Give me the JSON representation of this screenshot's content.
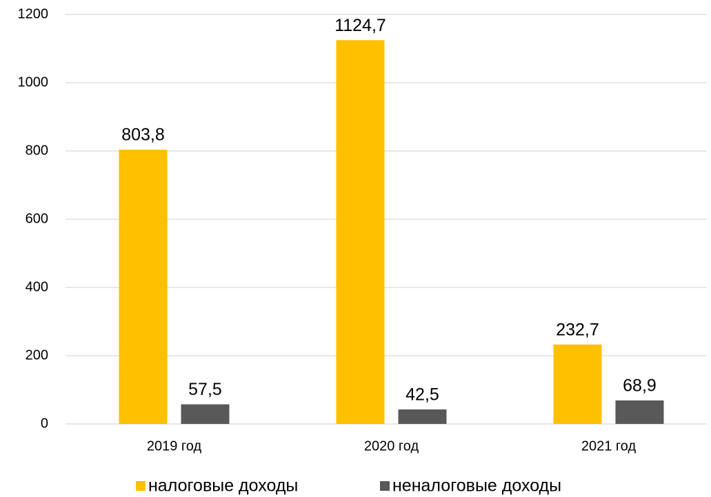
{
  "chart_data": {
    "type": "bar",
    "categories": [
      "2019 год",
      "2020 год",
      "2021 год"
    ],
    "series": [
      {
        "name": "налоговые доходы",
        "color": "#FFC000",
        "values": [
          803.8,
          1124.7,
          232.7
        ],
        "value_labels": [
          "803,8",
          "1124,7",
          "232,7"
        ]
      },
      {
        "name": "неналоговые доходы",
        "color": "#595959",
        "values": [
          57.5,
          42.5,
          68.9
        ],
        "value_labels": [
          "57,5",
          "42,5",
          "68,9"
        ]
      }
    ],
    "ylim": [
      0,
      1200
    ],
    "yticks": [
      0,
      200,
      400,
      600,
      800,
      1000,
      1200
    ],
    "grid": true,
    "legend": "bottom"
  }
}
